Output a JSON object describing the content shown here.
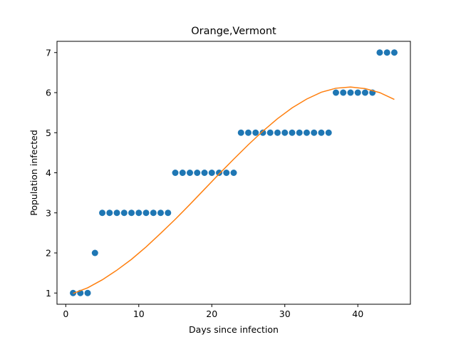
{
  "chart_data": {
    "type": "scatter",
    "title": "Orange,Vermont",
    "xlabel": "Days since infection",
    "ylabel": "Population infected",
    "xlim": [
      -1.2,
      47.2
    ],
    "ylim": [
      0.72,
      7.28
    ],
    "xticks": [
      0,
      10,
      20,
      30,
      40
    ],
    "yticks": [
      1,
      2,
      3,
      4,
      5,
      6,
      7
    ],
    "grid": false,
    "series": [
      {
        "kind": "scatter",
        "color": "#1f77b4",
        "x": [
          1,
          2,
          3,
          4,
          5,
          6,
          7,
          8,
          9,
          10,
          11,
          12,
          13,
          14,
          15,
          16,
          17,
          18,
          19,
          20,
          21,
          22,
          23,
          24,
          25,
          26,
          27,
          28,
          29,
          30,
          31,
          32,
          33,
          34,
          35,
          36,
          37,
          38,
          39,
          40,
          41,
          42,
          43,
          44,
          45
        ],
        "y": [
          1,
          1,
          1,
          2,
          3,
          3,
          3,
          3,
          3,
          3,
          3,
          3,
          3,
          3,
          4,
          4,
          4,
          4,
          4,
          4,
          4,
          4,
          4,
          5,
          5,
          5,
          5,
          5,
          5,
          5,
          5,
          5,
          5,
          5,
          5,
          5,
          6,
          6,
          6,
          6,
          6,
          6,
          7,
          7,
          7
        ]
      },
      {
        "kind": "line",
        "color": "#ff7f0e",
        "x": [
          1,
          3,
          5,
          7,
          9,
          11,
          13,
          15,
          17,
          19,
          21,
          23,
          25,
          27,
          29,
          31,
          33,
          35,
          37,
          39,
          41,
          43,
          45
        ],
        "y": [
          0.99,
          1.13,
          1.33,
          1.57,
          1.84,
          2.15,
          2.49,
          2.84,
          3.21,
          3.59,
          3.97,
          4.34,
          4.7,
          5.04,
          5.35,
          5.62,
          5.84,
          6.01,
          6.11,
          6.14,
          6.1,
          6.0,
          5.83
        ]
      }
    ]
  }
}
